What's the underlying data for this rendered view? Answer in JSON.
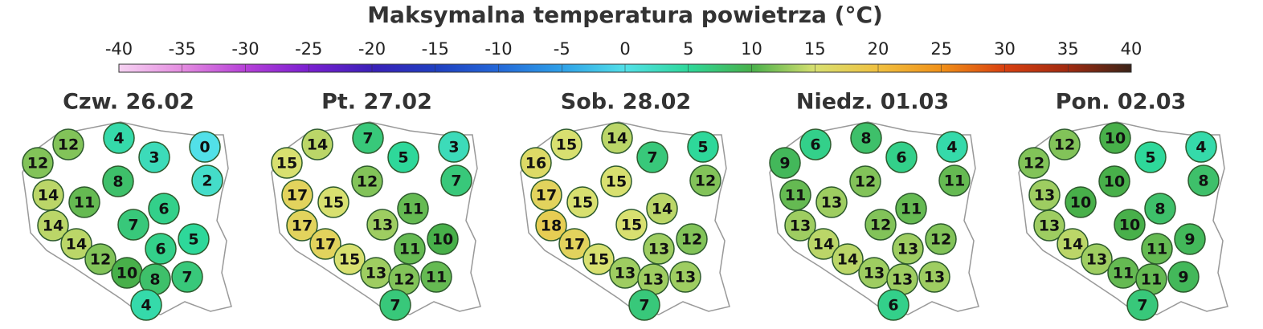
{
  "title": "Maksymalna temperatura powietrza (°C)",
  "colorbar": {
    "ticks": [
      -40,
      -35,
      -30,
      -25,
      -20,
      -15,
      -10,
      -5,
      0,
      5,
      10,
      15,
      20,
      25,
      30,
      35,
      40
    ],
    "colors": [
      "#f6d2f2",
      "#e48ce0",
      "#b640d8",
      "#7a1fd0",
      "#3a20b8",
      "#1f3fc0",
      "#2468d8",
      "#2ea0e8",
      "#52e0e8",
      "#2ed89a",
      "#48b04a",
      "#d8e070",
      "#f0c040",
      "#f09018",
      "#d84010",
      "#a02a10",
      "#3a2418"
    ]
  },
  "days": [
    {
      "label": "Czw. 26.02",
      "values": [
        12,
        4,
        0,
        12,
        3,
        2,
        8,
        14,
        11,
        6,
        7,
        14,
        5,
        14,
        6,
        12,
        10,
        7,
        8,
        4
      ]
    },
    {
      "label": "Pt. 27.02",
      "values": [
        14,
        7,
        3,
        15,
        5,
        7,
        12,
        17,
        15,
        11,
        13,
        17,
        10,
        17,
        11,
        15,
        13,
        11,
        12,
        7
      ]
    },
    {
      "label": "Sob. 28.02",
      "values": [
        15,
        14,
        5,
        16,
        7,
        12,
        15,
        17,
        15,
        14,
        15,
        18,
        12,
        17,
        13,
        15,
        13,
        13,
        13,
        7
      ]
    },
    {
      "label": "Niedz. 01.03",
      "values": [
        6,
        8,
        4,
        9,
        6,
        11,
        12,
        11,
        13,
        11,
        12,
        13,
        12,
        14,
        13,
        14,
        13,
        13,
        13,
        6
      ]
    },
    {
      "label": "Pon. 02.03",
      "values": [
        12,
        10,
        4,
        12,
        5,
        8,
        10,
        13,
        10,
        8,
        10,
        13,
        9,
        14,
        11,
        13,
        11,
        9,
        11,
        7
      ]
    }
  ]
}
